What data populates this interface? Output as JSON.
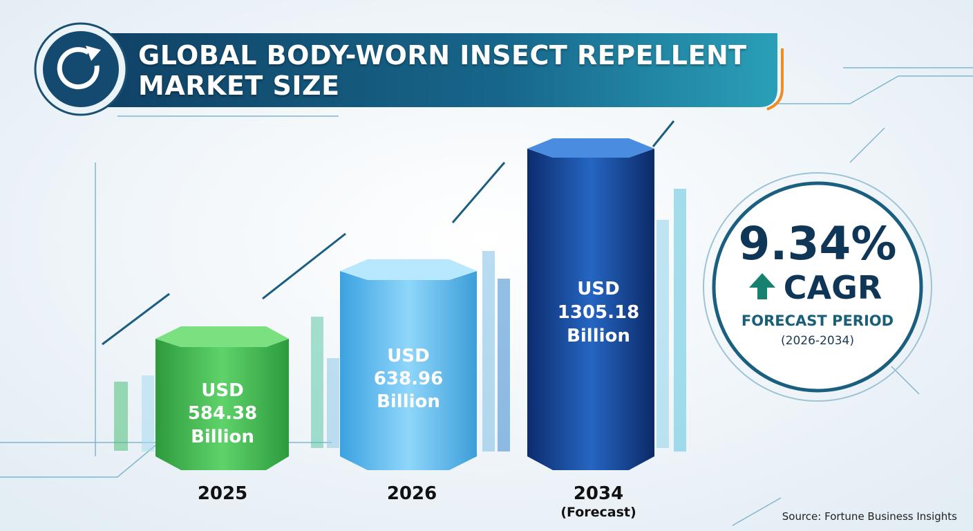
{
  "header": {
    "title": "GLOBAL BODY-WORN INSECT REPELLENT MARKET SIZE"
  },
  "bars": [
    {
      "prefix": "USD",
      "value": "584.38",
      "unit": "Billion",
      "year": "2025"
    },
    {
      "prefix": "USD",
      "value": "638.96",
      "unit": "Billion",
      "year": "2026"
    },
    {
      "prefix": "USD",
      "value": "1305.18",
      "unit": "Billion",
      "year": "2034",
      "note": "(Forecast)"
    }
  ],
  "cagr": {
    "value": "9.34%",
    "label": "CAGR",
    "title": "FORECAST PERIOD",
    "period": "(2026-2034)"
  },
  "source": "Source: Fortune Business Insights"
}
